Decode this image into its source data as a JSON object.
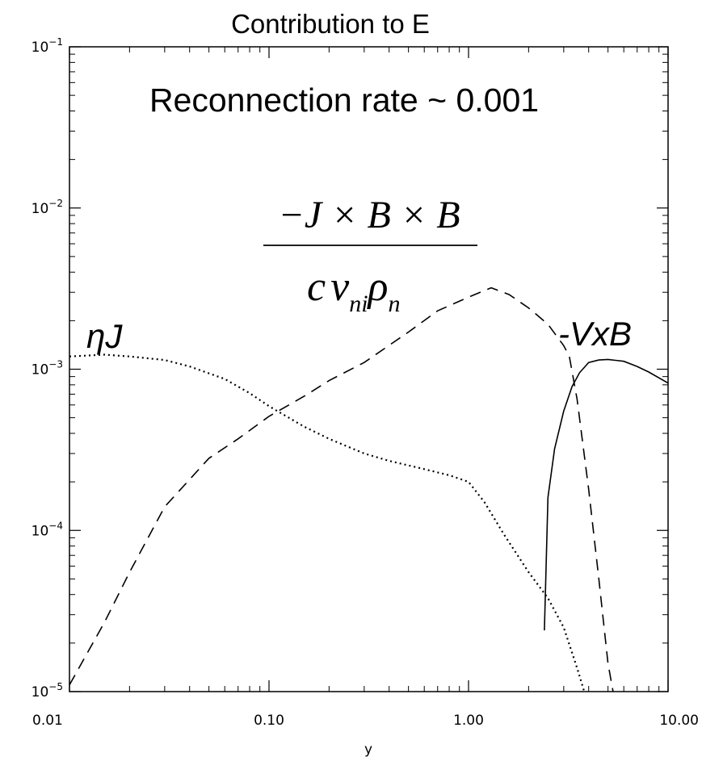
{
  "chart_data": {
    "type": "line",
    "title": "Contribution to E",
    "xlabel": "y",
    "ylabel": "",
    "xscale": "log",
    "yscale": "log",
    "xlim": [
      0.01,
      10.0
    ],
    "ylim": [
      1e-05,
      0.1
    ],
    "grid": false,
    "legend": "none",
    "x_tick_labels": [
      "0.01",
      "0.10",
      "1.00",
      "10.00"
    ],
    "y_tick_labels": [
      {
        "base": "10",
        "exp": "−5"
      },
      {
        "base": "10",
        "exp": "−4"
      },
      {
        "base": "10",
        "exp": "−3"
      },
      {
        "base": "10",
        "exp": "−2"
      },
      {
        "base": "10",
        "exp": "−1"
      }
    ],
    "annotations": {
      "rate": "Reconnection rate ~ 0.001",
      "eta_j": "ηJ",
      "vxb": "-VxB",
      "fraction_numerator": "−J × B × B",
      "fraction_denominator_c": "c",
      "fraction_denominator_nu": "ν",
      "fraction_denominator_nu_sub": "ni",
      "fraction_denominator_rho": "ρ",
      "fraction_denominator_rho_sub": "n"
    },
    "series": [
      {
        "style": "dotted",
        "color": "#000000",
        "x": [
          0.01,
          0.015,
          0.02,
          0.03,
          0.04,
          0.06,
          0.08,
          0.1,
          0.15,
          0.2,
          0.3,
          0.4,
          0.6,
          0.8,
          1.0,
          1.2,
          1.5,
          2.0,
          2.5,
          3.0,
          3.5,
          3.8
        ],
        "y": [
          0.0012,
          0.00123,
          0.0012,
          0.00114,
          0.00104,
          0.00087,
          0.00071,
          0.00059,
          0.00044,
          0.00037,
          0.0003,
          0.00027,
          0.00024,
          0.00022,
          0.0002,
          0.00015,
          9.5e-05,
          5.5e-05,
          3.8e-05,
          2.5e-05,
          1.4e-05,
          1e-05
        ]
      },
      {
        "style": "dashed",
        "color": "#000000",
        "x": [
          0.01,
          0.015,
          0.02,
          0.03,
          0.05,
          0.07,
          0.1,
          0.15,
          0.2,
          0.3,
          0.5,
          0.7,
          1.0,
          1.3,
          1.6,
          2.0,
          2.5,
          3.0,
          3.2,
          3.5,
          4.0,
          4.5,
          5.0,
          5.3
        ],
        "y": [
          1.1e-05,
          2.7e-05,
          5.5e-05,
          0.00014,
          0.00028,
          0.00037,
          0.00051,
          0.00068,
          0.00085,
          0.0011,
          0.0017,
          0.0023,
          0.0028,
          0.0032,
          0.0029,
          0.0024,
          0.0019,
          0.0014,
          0.0012,
          0.00065,
          0.00018,
          5e-05,
          1.5e-05,
          1e-05
        ]
      },
      {
        "style": "solid",
        "color": "#000000",
        "x": [
          2.4,
          2.5,
          2.7,
          3.0,
          3.3,
          3.6,
          4.0,
          4.5,
          5.0,
          6.0,
          7.0,
          8.0,
          10.0
        ],
        "y": [
          2.4e-05,
          0.00016,
          0.00032,
          0.00055,
          0.00078,
          0.00095,
          0.0011,
          0.00114,
          0.00115,
          0.00112,
          0.00104,
          0.00096,
          0.00082
        ]
      }
    ]
  }
}
